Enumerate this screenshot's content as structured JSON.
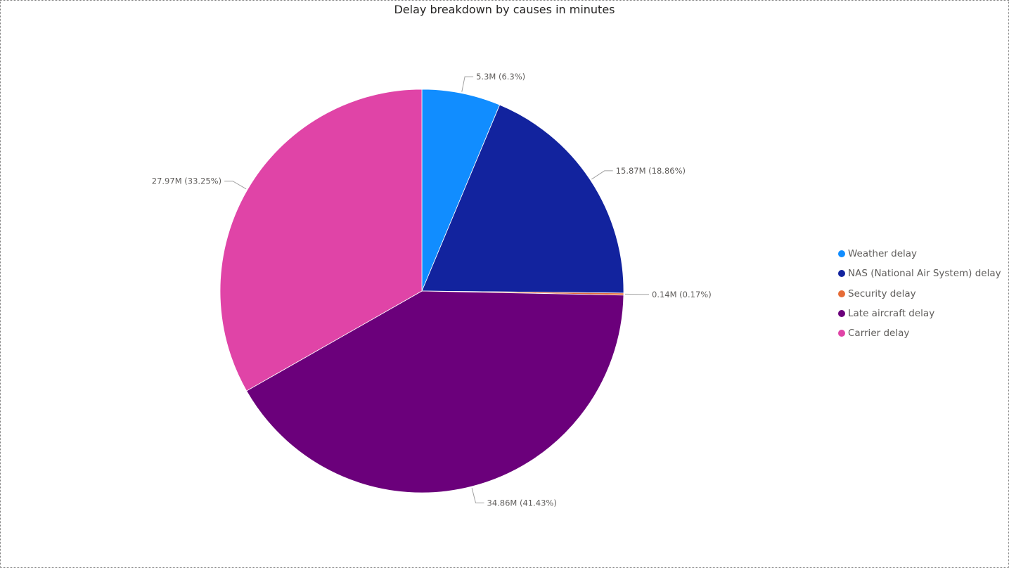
{
  "chart_data": {
    "type": "pie",
    "title": "Delay breakdown by causes in minutes",
    "legend_position": "right",
    "slices": [
      {
        "name": "Weather delay",
        "value": 5.3,
        "percent": 6.3,
        "label": "5.3M (6.3%)",
        "color": "#118dff"
      },
      {
        "name": "NAS (National Air System) delay",
        "value": 15.87,
        "percent": 18.86,
        "label": "15.87M (18.86%)",
        "color": "#12239e"
      },
      {
        "name": "Security delay",
        "value": 0.14,
        "percent": 0.17,
        "label": "0.14M (0.17%)",
        "color": "#e66c37"
      },
      {
        "name": "Late aircraft delay",
        "value": 34.86,
        "percent": 41.43,
        "label": "34.86M (41.43%)",
        "color": "#6b007b"
      },
      {
        "name": "Carrier delay",
        "value": 27.97,
        "percent": 33.25,
        "label": "27.97M (33.25%)",
        "color": "#e044a7"
      }
    ]
  }
}
